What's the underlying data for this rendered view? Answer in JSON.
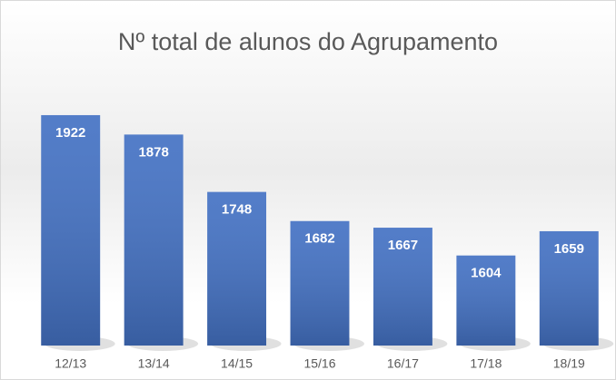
{
  "chart_data": {
    "type": "bar",
    "title": "Nº total de alunos do Agrupamento",
    "categories": [
      "12/13",
      "13/14",
      "14/15",
      "15/16",
      "16/17",
      "17/18",
      "18/19"
    ],
    "values": [
      1922,
      1878,
      1748,
      1682,
      1667,
      1604,
      1659
    ],
    "color": "#4472c4",
    "ylim": [
      1400,
      2000
    ]
  }
}
